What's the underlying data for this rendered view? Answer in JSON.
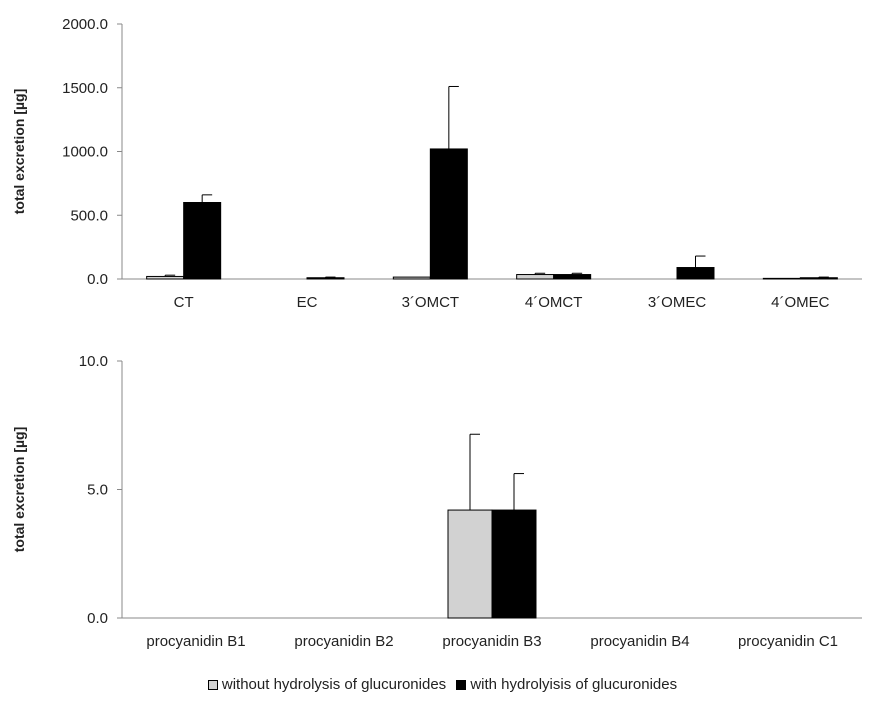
{
  "colors": {
    "without": "#d2d2d2",
    "with": "#000000",
    "axis": "#888888"
  },
  "legend": {
    "items": [
      {
        "label": "without hydrolysis of glucuronides",
        "color": "#d2d2d2"
      },
      {
        "label": "with hydrolyisis of glucuronides",
        "color": "#000000"
      }
    ]
  },
  "chart_data": [
    {
      "type": "bar",
      "ylabel": "total excretion [µg]",
      "ylim": [
        0,
        2000
      ],
      "yticks": [
        "0.0",
        "500.0",
        "1000.0",
        "1500.0",
        "2000.0"
      ],
      "ytick_values": [
        0,
        500,
        1000,
        1500,
        2000
      ],
      "categories": [
        "CT",
        "EC",
        "3´OMCT",
        "4´OMCT",
        "3´OMEC",
        "4´OMEC"
      ],
      "series": [
        {
          "name": "without hydrolysis of glucuronides",
          "values": [
            20,
            0,
            15,
            35,
            0,
            5
          ],
          "errors": [
            10,
            0,
            0,
            10,
            0,
            0
          ]
        },
        {
          "name": "with hydrolyisis of glucuronides",
          "values": [
            600,
            10,
            1020,
            35,
            90,
            10
          ],
          "errors": [
            60,
            5,
            490,
            10,
            90,
            5
          ]
        }
      ],
      "grid": false
    },
    {
      "type": "bar",
      "ylabel": "total excretion [µg]",
      "ylim": [
        0,
        10
      ],
      "yticks": [
        "0.0",
        "5.0",
        "10.0"
      ],
      "ytick_values": [
        0,
        5,
        10
      ],
      "categories": [
        "procyanidin B1",
        "procyanidin B2",
        "procyanidin B3",
        "procyanidin B4",
        "procyanidin C1"
      ],
      "series": [
        {
          "name": "without hydrolysis of glucuronides",
          "values": [
            0,
            0,
            4.2,
            0,
            0
          ],
          "errors": [
            0,
            0,
            2.95,
            0,
            0
          ]
        },
        {
          "name": "with hydrolyisis of glucuronides",
          "values": [
            0,
            0,
            4.2,
            0,
            0
          ],
          "errors": [
            0,
            0,
            1.42,
            0,
            0
          ]
        }
      ],
      "grid": false
    }
  ]
}
